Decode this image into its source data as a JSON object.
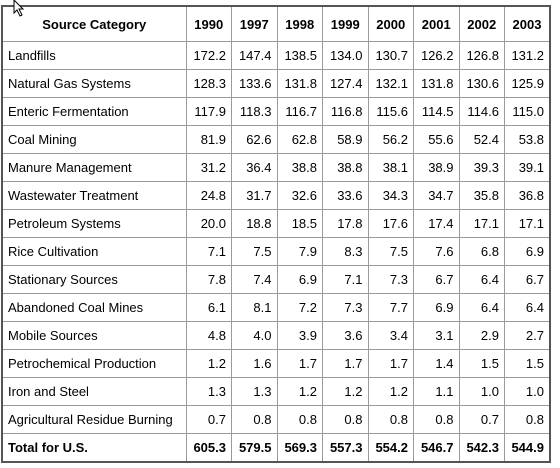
{
  "table": {
    "header": [
      "Source Category",
      "1990",
      "1997",
      "1998",
      "1999",
      "2000",
      "2001",
      "2002",
      "2003"
    ],
    "rows": [
      [
        "Landfills",
        "172.2",
        "147.4",
        "138.5",
        "134.0",
        "130.7",
        "126.2",
        "126.8",
        "131.2"
      ],
      [
        "Natural Gas Systems",
        "128.3",
        "133.6",
        "131.8",
        "127.4",
        "132.1",
        "131.8",
        "130.6",
        "125.9"
      ],
      [
        "Enteric Fermentation",
        "117.9",
        "118.3",
        "116.7",
        "116.8",
        "115.6",
        "114.5",
        "114.6",
        "115.0"
      ],
      [
        "Coal Mining",
        "81.9",
        "62.6",
        "62.8",
        "58.9",
        "56.2",
        "55.6",
        "52.4",
        "53.8"
      ],
      [
        "Manure Management",
        "31.2",
        "36.4",
        "38.8",
        "38.8",
        "38.1",
        "38.9",
        "39.3",
        "39.1"
      ],
      [
        "Wastewater Treatment",
        "24.8",
        "31.7",
        "32.6",
        "33.6",
        "34.3",
        "34.7",
        "35.8",
        "36.8"
      ],
      [
        "Petroleum Systems",
        "20.0",
        "18.8",
        "18.5",
        "17.8",
        "17.6",
        "17.4",
        "17.1",
        "17.1"
      ],
      [
        "Rice Cultivation",
        "7.1",
        "7.5",
        "7.9",
        "8.3",
        "7.5",
        "7.6",
        "6.8",
        "6.9"
      ],
      [
        "Stationary Sources",
        "7.8",
        "7.4",
        "6.9",
        "7.1",
        "7.3",
        "6.7",
        "6.4",
        "6.7"
      ],
      [
        "Abandoned Coal Mines",
        "6.1",
        "8.1",
        "7.2",
        "7.3",
        "7.7",
        "6.9",
        "6.4",
        "6.4"
      ],
      [
        "Mobile Sources",
        "4.8",
        "4.0",
        "3.9",
        "3.6",
        "3.4",
        "3.1",
        "2.9",
        "2.7"
      ],
      [
        "Petrochemical Production",
        "1.2",
        "1.6",
        "1.7",
        "1.7",
        "1.7",
        "1.4",
        "1.5",
        "1.5"
      ],
      [
        "Iron and Steel",
        "1.3",
        "1.3",
        "1.2",
        "1.2",
        "1.2",
        "1.1",
        "1.0",
        "1.0"
      ],
      [
        "Agricultural Residue Burning",
        "0.7",
        "0.8",
        "0.8",
        "0.8",
        "0.8",
        "0.8",
        "0.7",
        "0.8"
      ]
    ],
    "total": [
      "Total for U.S.",
      "605.3",
      "579.5",
      "569.3",
      "557.3",
      "554.2",
      "546.7",
      "542.3",
      "544.9"
    ]
  }
}
